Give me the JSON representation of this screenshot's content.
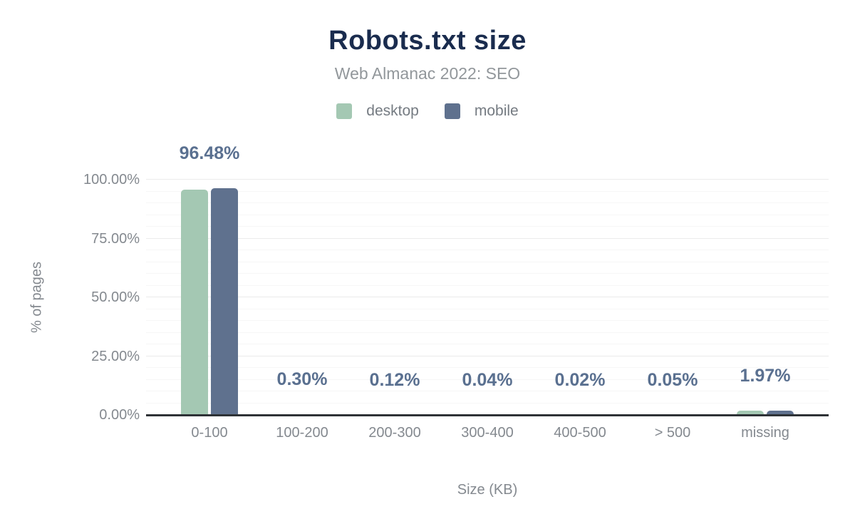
{
  "chart_data": {
    "type": "bar",
    "title": "Robots.txt size",
    "subtitle": "Web Almanac 2022: SEO",
    "xlabel": "Size (KB)",
    "ylabel": "% of pages",
    "categories": [
      "0-100",
      "100-200",
      "200-300",
      "300-400",
      "400-500",
      "> 500",
      "missing"
    ],
    "series": [
      {
        "name": "desktop",
        "color": "#a4c8b3",
        "values": [
          95.9,
          0.28,
          0.11,
          0.04,
          0.02,
          0.05,
          1.7
        ]
      },
      {
        "name": "mobile",
        "color": "#5f718e",
        "values": [
          96.48,
          0.3,
          0.12,
          0.04,
          0.02,
          0.05,
          1.97
        ]
      }
    ],
    "value_labels": [
      "96.48%",
      "0.30%",
      "0.12%",
      "0.04%",
      "0.02%",
      "0.05%",
      "1.97%"
    ],
    "y_ticks": [
      {
        "label": "100.00%",
        "value": 100
      },
      {
        "label": "75.00%",
        "value": 75
      },
      {
        "label": "50.00%",
        "value": 50
      },
      {
        "label": "25.00%",
        "value": 25
      },
      {
        "label": "0.00%",
        "value": 0
      }
    ],
    "ylim": [
      0,
      100
    ],
    "grid": {
      "horizontal": true,
      "minor_step": 5,
      "major_step": 25
    },
    "legend_position": "top"
  },
  "colors": {
    "background": "#ffffff",
    "title": "#1a2c4e",
    "subtitle": "#92979b",
    "axis_text": "#84898f",
    "legend_text": "#757b82",
    "value_label": "#5a7090",
    "desktop": "#a4c8b3",
    "mobile": "#5f718e",
    "axis_line": "#2e3236",
    "grid_minor": "#f6f6f6",
    "grid_major": "#ebebeb"
  }
}
